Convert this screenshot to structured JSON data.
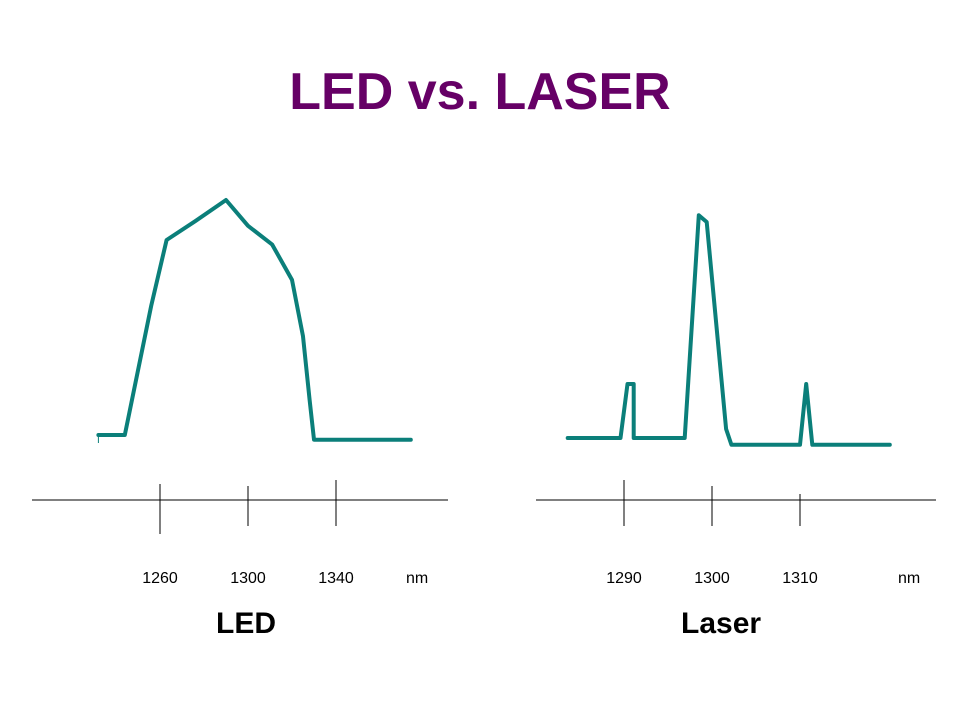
{
  "slide": {
    "title": "LED vs. LASER"
  },
  "colors": {
    "title": "#660066",
    "curve": "#0b7f7a",
    "axis": "#000000"
  },
  "chart_data": [
    {
      "type": "line",
      "title": "LED",
      "unit_label": "nm",
      "x_ticks": [
        "1260",
        "1300",
        "1340"
      ],
      "series": [
        {
          "x": [
            1232,
            1244,
            1256,
            1263,
            1276,
            1290,
            1300,
            1311,
            1320,
            1325,
            1328,
            1330,
            1332,
            1374
          ],
          "y": [
            0.0,
            0.0,
            0.55,
            0.83,
            0.91,
            1.0,
            0.89,
            0.81,
            0.66,
            0.42,
            0.15,
            -0.02,
            -0.02,
            -0.02
          ]
        }
      ]
    },
    {
      "type": "line",
      "title": "Laser",
      "unit_label": "nm",
      "x_ticks": [
        "1290",
        "1300",
        "1310"
      ],
      "series": [
        {
          "x": [
            1283.6,
            1289.6,
            1290.4,
            1291.1,
            1291.1,
            1291.6,
            1296.9,
            1298.5,
            1299.4,
            1301.6,
            1302.2,
            1302.7,
            1310.0,
            1310.7,
            1311.4,
            1320.2
          ],
          "y": [
            0.0,
            0.0,
            0.24,
            0.24,
            0.0,
            0.0,
            0.0,
            0.99,
            0.96,
            0.04,
            -0.03,
            -0.03,
            -0.03,
            0.24,
            -0.03,
            -0.03
          ]
        }
      ]
    }
  ]
}
